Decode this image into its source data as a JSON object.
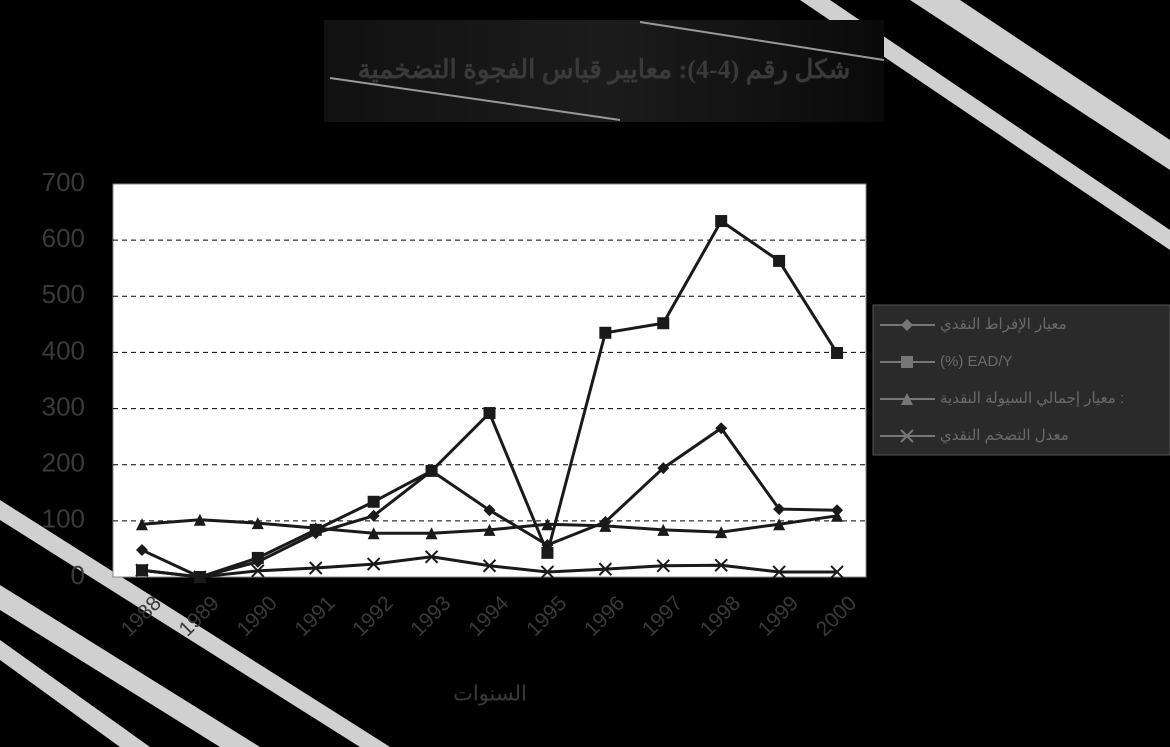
{
  "chart_data": {
    "type": "line",
    "title": "شكل رقم (4-4): معايير قياس الفجوة التضخمية",
    "x_label": "السنوات",
    "categories": [
      "1988",
      "1989",
      "1990",
      "1991",
      "1992",
      "1993",
      "1994",
      "1995",
      "1996",
      "1997",
      "1998",
      "1999",
      "2000"
    ],
    "series": [
      {
        "name": "معيار الإفراط النقدي",
        "color": "#1a1a1a",
        "marker": "diamond",
        "values": [
          48,
          0,
          27,
          78,
          109,
          189,
          119,
          57,
          98,
          194,
          265,
          121,
          119
        ]
      },
      {
        "name": "(%) EAD/Y",
        "color": "#1a1a1a",
        "marker": "square",
        "values": [
          12,
          0,
          34,
          84,
          134,
          189,
          292,
          43,
          435,
          452,
          634,
          563,
          399
        ]
      },
      {
        "name": "معيار إجمالي السيولة النقدية :",
        "color": "#1a1a1a",
        "marker": "triangle",
        "values": [
          94,
          102,
          96,
          87,
          78,
          78,
          84,
          94,
          91,
          84,
          80,
          94,
          109
        ]
      },
      {
        "name": "معدل التضخم النقدي",
        "color": "#1a1a1a",
        "marker": "x",
        "values": [
          12,
          0,
          11,
          16,
          23,
          36,
          20,
          9,
          14,
          20,
          21,
          9,
          9
        ]
      }
    ],
    "ylim": [
      0,
      700
    ],
    "yticks": [
      0,
      100,
      200,
      300,
      400,
      500,
      600,
      700
    ],
    "grid": true,
    "legend": "right"
  }
}
